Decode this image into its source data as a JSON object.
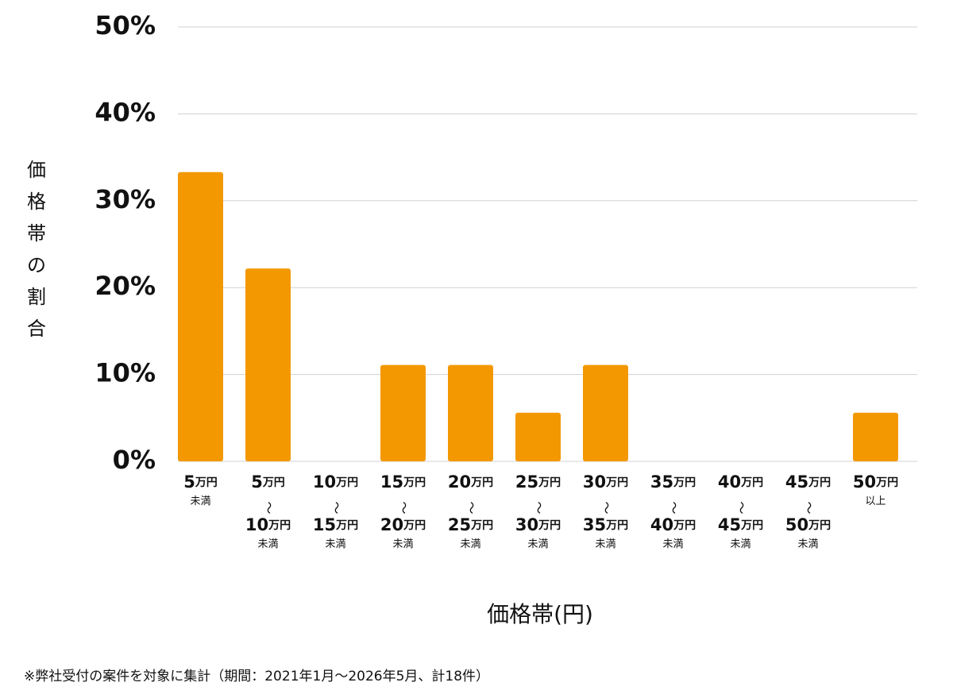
{
  "chart_data": {
    "type": "bar",
    "y_label": "価格帯の割合",
    "x_label": "価格帯(円)",
    "note": "※弊社受付の案件を対象に集計（期間：2021年1月〜2026年5月、計18件）",
    "categories": [
      "5万円\n未満",
      "5万円\n〜\n10万円\n未満",
      "10万円\n〜\n15万円\n未満",
      "15万円\n〜\n20万円\n未満",
      "20万円\n〜\n25万円\n未満",
      "25万円\n〜\n30万円\n未満",
      "30万円\n〜\n35万円\n未満",
      "35万円\n〜\n40万円\n未満",
      "40万円\n〜\n45万円\n未満",
      "45万円\n〜\n50万円\n未満",
      "50万円\n以上"
    ],
    "values": [
      33.3,
      22.2,
      0,
      11.1,
      11.1,
      5.6,
      11.1,
      0,
      0,
      0,
      5.6
    ],
    "color": "#f39800",
    "ylim": [
      0,
      50
    ],
    "yticks": [
      {
        "value": 0,
        "label": "0%"
      },
      {
        "value": 10,
        "label": "10%"
      },
      {
        "value": 20,
        "label": "20%"
      },
      {
        "value": 30,
        "label": "30%"
      },
      {
        "value": 40,
        "label": "40%"
      },
      {
        "value": 50,
        "label": "50%"
      }
    ],
    "grid": true
  }
}
